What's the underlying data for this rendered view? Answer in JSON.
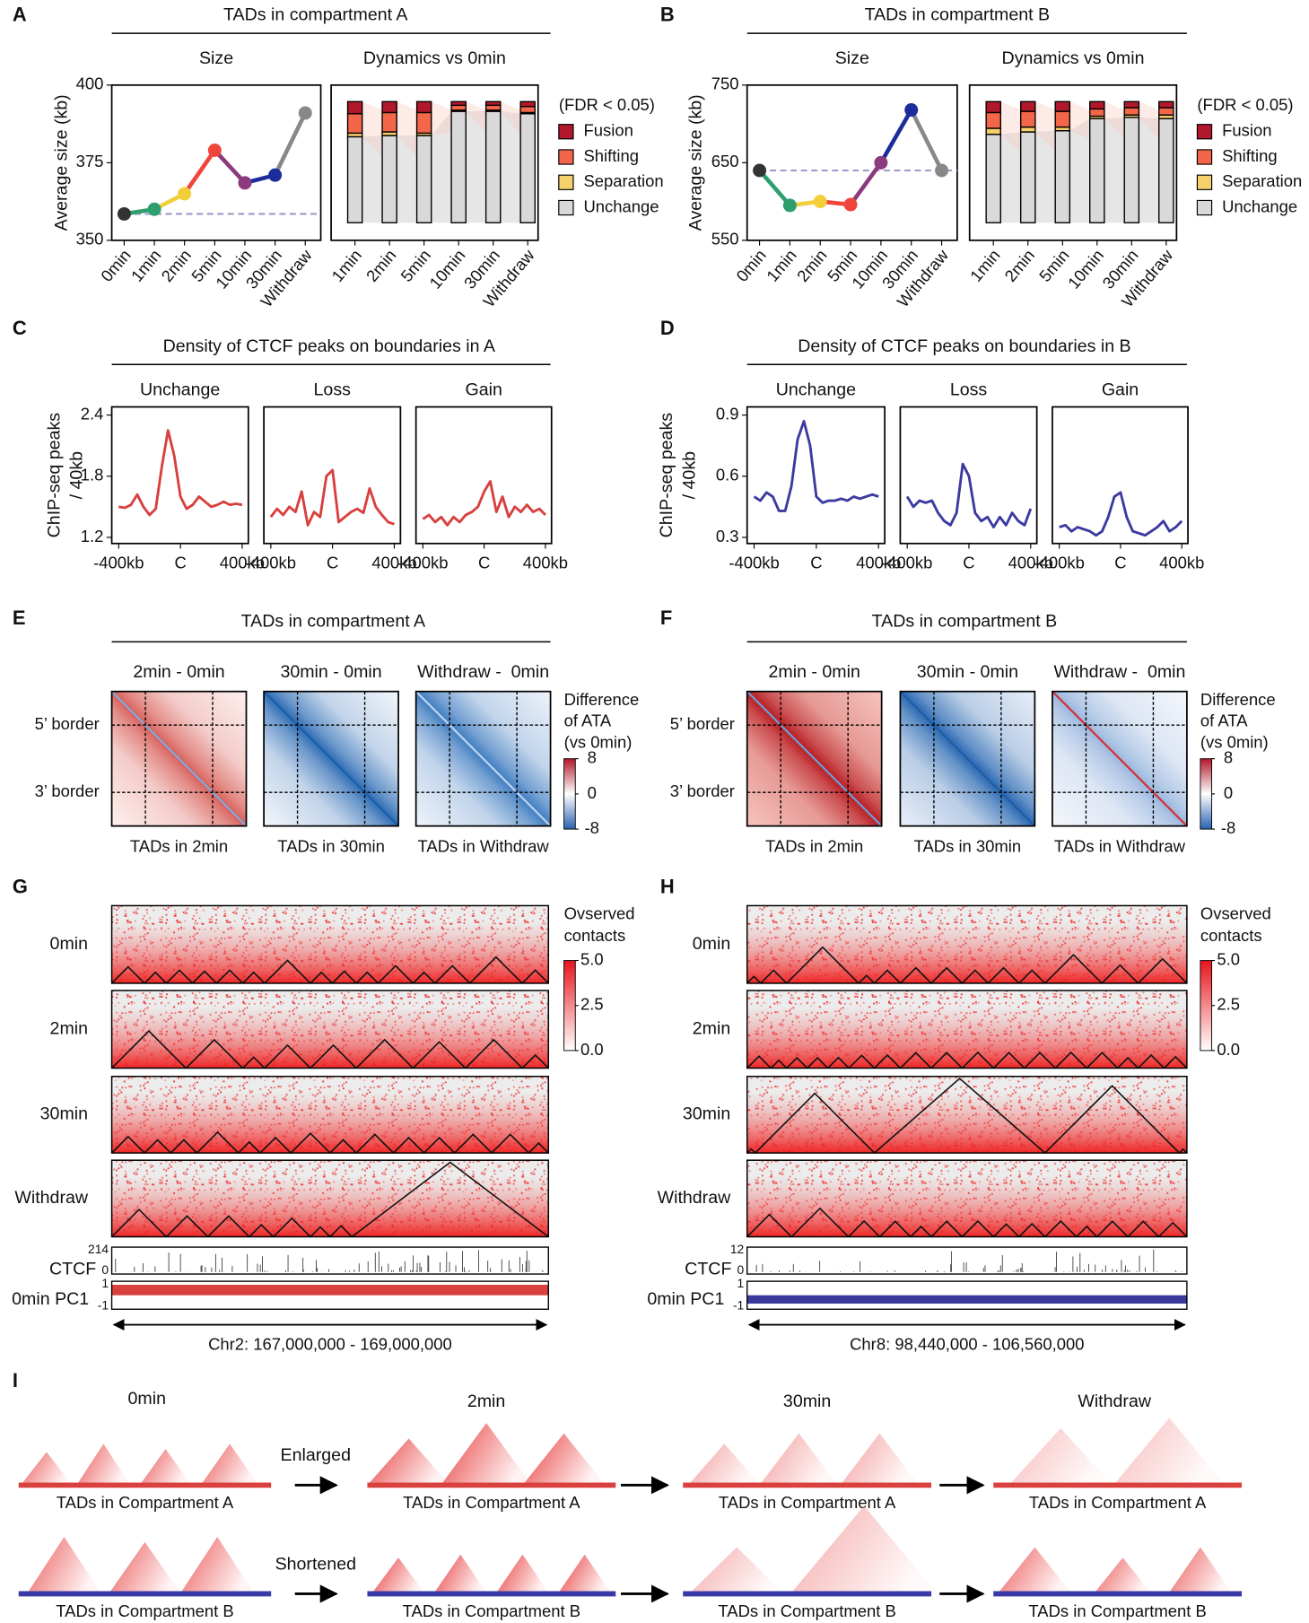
{
  "panel_labels": [
    "A",
    "B",
    "C",
    "D",
    "E",
    "F",
    "G",
    "H",
    "I"
  ],
  "chart_data": [
    {
      "type": "line",
      "title": "TADs in compartment A",
      "subtitle": "Size",
      "ylabel": "Average size (kb)",
      "categories": [
        "0min",
        "1min",
        "2min",
        "5min",
        "10min",
        "30min",
        "Withdraw"
      ],
      "values": [
        358.5,
        360,
        365,
        379,
        368.5,
        371,
        391
      ],
      "colors": [
        "#333333",
        "#2e9e6e",
        "#f2cf3a",
        "#f0453a",
        "#8c3a7e",
        "#1d2c9c",
        "#888888"
      ],
      "reference_color": "#9a9acb",
      "ylim": [
        350,
        400
      ],
      "yticks": [
        350,
        375,
        400
      ]
    },
    {
      "type": "stacked_bar",
      "subtitle": "Dynamics vs 0min",
      "legend_title": "(FDR < 0.05)",
      "categories": [
        "1min",
        "2min",
        "5min",
        "10min",
        "30min",
        "Withdraw"
      ],
      "series": [
        {
          "name": "Fusion",
          "color": "#b2182b",
          "values": [
            10,
            9,
            9,
            3,
            3,
            4
          ]
        },
        {
          "name": "Shifting",
          "color": "#f4664a",
          "values": [
            16,
            16,
            17,
            4,
            4,
            5
          ]
        },
        {
          "name": "Separation",
          "color": "#f6d06a",
          "values": [
            3,
            3,
            2,
            1,
            1,
            1
          ]
        },
        {
          "name": "Unchange",
          "color": "#d9d9d9",
          "values": [
            71,
            72,
            72,
            92,
            92,
            90
          ]
        }
      ]
    },
    {
      "type": "line",
      "title": "TADs in compartment B",
      "subtitle": "Size",
      "ylabel": "Average size (kb)",
      "categories": [
        "0min",
        "1min",
        "2min",
        "5min",
        "10min",
        "30min",
        "Withdraw"
      ],
      "values": [
        640,
        595,
        600,
        596,
        650,
        718,
        640
      ],
      "colors": [
        "#333333",
        "#2e9e6e",
        "#f2cf3a",
        "#f0453a",
        "#8c3a7e",
        "#1d2c9c",
        "#888888"
      ],
      "reference_color": "#9a9acb",
      "ylim": [
        550,
        750
      ],
      "yticks": [
        550,
        650,
        750
      ]
    },
    {
      "type": "stacked_bar",
      "subtitle": "Dynamics vs 0min",
      "legend_title": "(FDR < 0.05)",
      "categories": [
        "1min",
        "2min",
        "5min",
        "10min",
        "30min",
        "Withdraw"
      ],
      "series": [
        {
          "name": "Fusion",
          "color": "#b2182b",
          "values": [
            9,
            8,
            8,
            6,
            5,
            5
          ]
        },
        {
          "name": "Shifting",
          "color": "#f4664a",
          "values": [
            13,
            13,
            13,
            6,
            6,
            6
          ]
        },
        {
          "name": "Separation",
          "color": "#f6d06a",
          "values": [
            5,
            4,
            3,
            2,
            2,
            3
          ]
        },
        {
          "name": "Unchange",
          "color": "#d9d9d9",
          "values": [
            73,
            75,
            76,
            86,
            87,
            86
          ]
        }
      ]
    },
    {
      "type": "small_multiples",
      "title": "Density of CTCF peaks on boundaries in A",
      "ylabel": [
        "ChIP-seq peaks",
        "/ 40kb"
      ],
      "color": "#d8403e",
      "x": [
        -400,
        -360,
        -320,
        -280,
        -240,
        -200,
        -160,
        -120,
        -80,
        -40,
        0,
        40,
        80,
        120,
        160,
        200,
        240,
        280,
        320,
        360,
        400
      ],
      "xlim": [
        -445,
        440
      ],
      "xticks": [
        {
          "value": -400,
          "label": "-400kb"
        },
        {
          "value": 0,
          "label": "C"
        },
        {
          "value": 400,
          "label": "400kb"
        }
      ],
      "ylim": [
        1.14,
        2.48
      ],
      "yticks": [
        1.2,
        1.8,
        2.4
      ],
      "panels": [
        {
          "subtitle": "Unchange",
          "values": [
            1.5,
            1.49,
            1.52,
            1.62,
            1.5,
            1.42,
            1.48,
            1.9,
            2.25,
            2.0,
            1.6,
            1.48,
            1.52,
            1.6,
            1.55,
            1.5,
            1.52,
            1.55,
            1.52,
            1.53,
            1.52
          ]
        },
        {
          "subtitle": "Loss",
          "values": [
            1.4,
            1.48,
            1.42,
            1.5,
            1.45,
            1.65,
            1.32,
            1.45,
            1.4,
            1.8,
            1.86,
            1.35,
            1.4,
            1.45,
            1.48,
            1.44,
            1.68,
            1.5,
            1.42,
            1.35,
            1.33
          ]
        },
        {
          "subtitle": "Gain",
          "values": [
            1.38,
            1.42,
            1.35,
            1.4,
            1.32,
            1.4,
            1.35,
            1.42,
            1.45,
            1.5,
            1.65,
            1.75,
            1.45,
            1.6,
            1.4,
            1.5,
            1.45,
            1.52,
            1.45,
            1.48,
            1.42
          ]
        }
      ]
    },
    {
      "type": "small_multiples",
      "title": "Density of CTCF peaks on boundaries in B",
      "ylabel": [
        "ChIP-seq peaks",
        "/ 40kb"
      ],
      "color": "#3b3aa0",
      "x": [
        -400,
        -360,
        -320,
        -280,
        -240,
        -200,
        -160,
        -120,
        -80,
        -40,
        0,
        40,
        80,
        120,
        160,
        200,
        240,
        280,
        320,
        360,
        400
      ],
      "xlim": [
        -445,
        440
      ],
      "xticks": [
        {
          "value": -400,
          "label": "-400kb"
        },
        {
          "value": 0,
          "label": "C"
        },
        {
          "value": 400,
          "label": "400kb"
        }
      ],
      "ylim": [
        0.27,
        0.94
      ],
      "yticks": [
        0.3,
        0.6,
        0.9
      ],
      "panels": [
        {
          "subtitle": "Unchange",
          "values": [
            0.5,
            0.48,
            0.52,
            0.5,
            0.43,
            0.43,
            0.55,
            0.78,
            0.87,
            0.75,
            0.5,
            0.47,
            0.48,
            0.48,
            0.49,
            0.48,
            0.5,
            0.49,
            0.5,
            0.51,
            0.5
          ]
        },
        {
          "subtitle": "Loss",
          "values": [
            0.5,
            0.45,
            0.48,
            0.47,
            0.48,
            0.42,
            0.38,
            0.36,
            0.42,
            0.66,
            0.6,
            0.42,
            0.38,
            0.4,
            0.35,
            0.4,
            0.36,
            0.42,
            0.38,
            0.36,
            0.44
          ]
        },
        {
          "subtitle": "Gain",
          "values": [
            0.35,
            0.36,
            0.33,
            0.35,
            0.34,
            0.33,
            0.31,
            0.33,
            0.4,
            0.5,
            0.52,
            0.4,
            0.33,
            0.32,
            0.31,
            0.33,
            0.35,
            0.38,
            0.33,
            0.35,
            0.38
          ]
        }
      ]
    }
  ],
  "aggregate_maps": [
    {
      "title": "TADs in compartment A",
      "border_labels": [
        "5’ border",
        "3’ border"
      ],
      "panels": [
        {
          "subtitle": "2min - 0min",
          "xlabel": "TADs in 2min",
          "colors": [
            "#fdf0ee",
            "#d8605a"
          ],
          "diagonal_color": "#7fa8d8"
        },
        {
          "subtitle": "30min - 0min",
          "xlabel": "TADs in 30min",
          "colors": [
            "#f3f6fb",
            "#2e6db5"
          ],
          "diagonal_color": "#1f5fa8"
        },
        {
          "subtitle": "Withdraw -  0min",
          "xlabel": "TADs in Withdraw",
          "colors": [
            "#eef3fa",
            "#3f7cc0"
          ],
          "diagonal_color": "#b8d0ee"
        }
      ],
      "colorbar": {
        "title": [
          "Difference",
          "of ATA",
          "(vs 0min)"
        ],
        "lim": [
          -8,
          8
        ],
        "ticks": [
          8,
          0,
          -8
        ]
      }
    },
    {
      "title": "TADs in compartment B",
      "border_labels": [
        "5’ border",
        "3’ border"
      ],
      "panels": [
        {
          "subtitle": "2min - 0min",
          "xlabel": "TADs in 2min",
          "colors": [
            "#f6c4bc",
            "#b81c22"
          ],
          "diagonal_color": "#6f9ad0"
        },
        {
          "subtitle": "30min - 0min",
          "xlabel": "TADs in 30min",
          "colors": [
            "#e9eff8",
            "#2a69b2"
          ],
          "diagonal_color": "#1f5fa8"
        },
        {
          "subtitle": "Withdraw -  0min",
          "xlabel": "TADs in Withdraw",
          "colors": [
            "#f4f6fb",
            "#9bb8df"
          ],
          "diagonal_color": "#d0343a"
        }
      ],
      "colorbar": {
        "title": [
          "Difference",
          "of ATA",
          "(vs 0min)"
        ],
        "lim": [
          -8,
          8
        ],
        "ticks": [
          8,
          0,
          -8
        ]
      }
    }
  ],
  "contact_maps": [
    {
      "xlim": [
        167000000,
        169000000
      ],
      "coordinate_label": "Chr2: 167,000,000 - 169,000,000",
      "rows": [
        {
          "label": "0min",
          "tad_boundaries": [
            167000000,
            167150000,
            167250000,
            167370000,
            167480000,
            167600000,
            167700000,
            167910000,
            168010000,
            168120000,
            168220000,
            168380000,
            168480000,
            168640000,
            168880000,
            169000000
          ]
        },
        {
          "label": "2min",
          "tad_boundaries": [
            167000000,
            167340000,
            167600000,
            167700000,
            167910000,
            168120000,
            168380000,
            168620000,
            168880000,
            169000000
          ]
        },
        {
          "label": "30min",
          "tad_boundaries": [
            167000000,
            167150000,
            167270000,
            167390000,
            167580000,
            167680000,
            167820000,
            168000000,
            168120000,
            168290000,
            168430000,
            168570000,
            168740000,
            168910000,
            169000000
          ]
        },
        {
          "label": "Withdraw",
          "tad_boundaries": [
            167000000,
            167250000,
            167440000,
            167630000,
            167740000,
            167910000,
            168000000,
            168100000,
            169000000
          ]
        }
      ],
      "ctcf": {
        "label": "CTCF",
        "ylim": [
          0,
          214
        ],
        "yticks": [
          214,
          0
        ]
      },
      "pc1": {
        "label": "0min PC1",
        "ylim": [
          -1,
          1
        ],
        "yticks": [
          1,
          -1
        ],
        "value": 0.75,
        "color": "#d9413f"
      },
      "colorbar": {
        "title": [
          "Ovserved",
          "contacts"
        ],
        "lim": [
          0,
          5
        ],
        "ticks": [
          {
            "value": 5,
            "label": "5.0"
          },
          2.5,
          {
            "value": 0,
            "label": "0.0"
          }
        ]
      }
    },
    {
      "xlim": [
        98440000,
        106560000
      ],
      "coordinate_label": "Chr8: 98,440,000 - 106,560,000",
      "rows": [
        {
          "label": "0min",
          "tad_boundaries": [
            98440000,
            98690000,
            99170000,
            100500000,
            100790000,
            101270000,
            101840000,
            102410000,
            102890000,
            103460000,
            103940000,
            104990000,
            105660000,
            106560000
          ]
        },
        {
          "label": "2min",
          "tad_boundaries": [
            98440000,
            98880000,
            99170000,
            99550000,
            99930000,
            100320000,
            100790000,
            101270000,
            101840000,
            102410000,
            102990000,
            103560000,
            104130000,
            104710000,
            105280000,
            105660000,
            106140000,
            106560000
          ]
        },
        {
          "label": "30min",
          "tad_boundaries": [
            98440000,
            98590000,
            100790000,
            103940000,
            106420000,
            106560000
          ]
        },
        {
          "label": "Withdraw",
          "tad_boundaries": [
            98440000,
            99260000,
            100310000,
            100890000,
            101460000,
            101840000,
            102410000,
            102990000,
            103460000,
            103940000,
            104520000,
            104900000,
            105470000,
            106040000,
            106560000
          ]
        }
      ],
      "ctcf": {
        "label": "CTCF",
        "ylim": [
          0,
          12
        ],
        "yticks": [
          12,
          0
        ]
      },
      "pc1": {
        "label": "0min PC1",
        "ylim": [
          -1,
          1
        ],
        "yticks": [
          1,
          -1
        ],
        "value": -0.6,
        "color": "#3a3a9c"
      },
      "colorbar": {
        "title": [
          "Ovserved",
          "contacts"
        ],
        "lim": [
          0,
          5
        ],
        "ticks": [
          {
            "value": 5,
            "label": "5.0"
          },
          2.5,
          {
            "value": 0,
            "label": "0.0"
          }
        ]
      }
    }
  ],
  "schematic": {
    "times": [
      "0min",
      "2min",
      "30min",
      "Withdraw"
    ],
    "rows": [
      {
        "transition": "Enlarged",
        "segment_label": "TADs in Compartment A",
        "color": "#d9413f"
      },
      {
        "transition": "Shortened",
        "segment_label": "TADs in Compartment B",
        "color": "#3a3aa6"
      }
    ]
  }
}
